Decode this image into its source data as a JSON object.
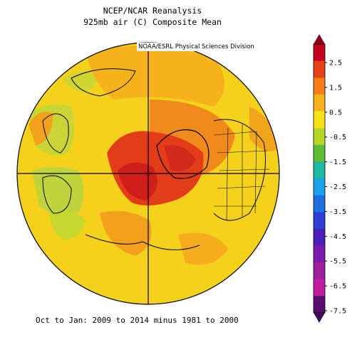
{
  "header": {
    "line1": "NCEP/NCAR Reanalysis",
    "line2": "925mb air (C) Composite Mean",
    "credit": "NOAA/ESRL Physical Sciences Division"
  },
  "footer": "Oct to Jan: 2009 to 2014 minus 1981 to 2000",
  "colorbar": {
    "labels": [
      "2.5",
      "1.5",
      "0.5",
      "-0.5",
      "-1.5",
      "-2.5",
      "-3.5",
      "-4.5",
      "-5.5",
      "-6.5",
      "-7.5"
    ],
    "colors": [
      "#c6001c",
      "#e8401a",
      "#f57b1b",
      "#f9b11c",
      "#f8e31a",
      "#b8d62a",
      "#5bbe36",
      "#1fb9a6",
      "#1da2e5",
      "#1d6fe0",
      "#2f3fd6",
      "#4b1fb8",
      "#7a1cae",
      "#9c1f9c",
      "#c21ca0",
      "#5a0f6e"
    ]
  }
}
